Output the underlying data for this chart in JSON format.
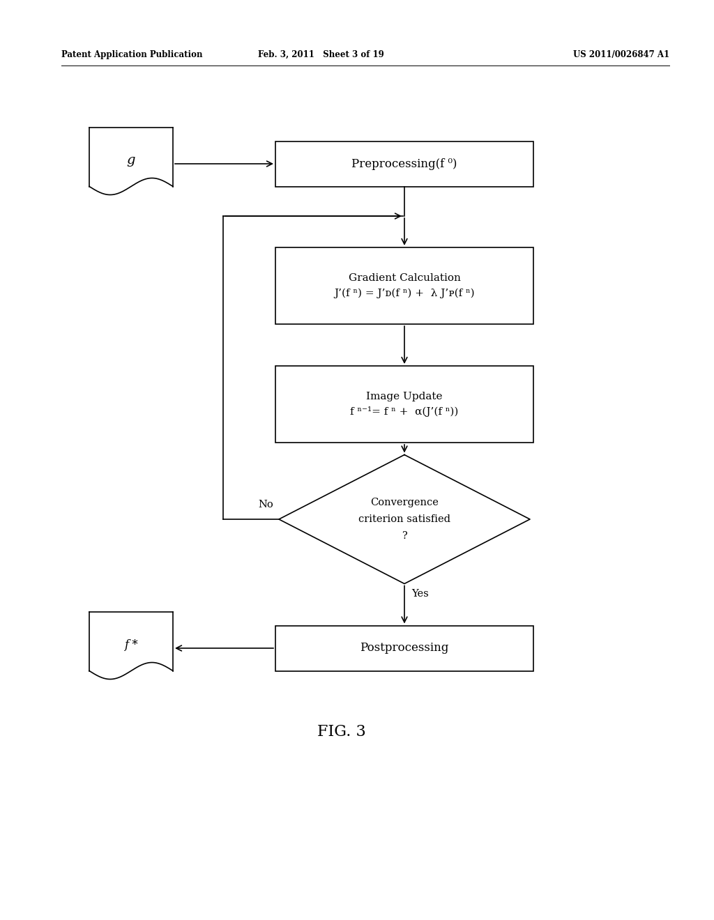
{
  "header_left": "Patent Application Publication",
  "header_center": "Feb. 3, 2011   Sheet 3 of 19",
  "header_right": "US 2011/0026847 A1",
  "fig_label": "FIG. 3",
  "preprocessing_label": "Preprocessing(f ⁰)",
  "gradient_line1": "Gradient Calculation",
  "gradient_line2": "J’(f ⁿ) = J’ᴅ(f ⁿ) +  λ J’ᴘ(f ⁿ)",
  "image_update_line1": "Image Update",
  "image_update_line2": "f ⁿ⁻¹= f ⁿ +  α(J’(f ⁿ))",
  "convergence_line1": "Convergence",
  "convergence_line2": "criterion satisfied",
  "convergence_line3": "?",
  "no_label": "No",
  "yes_label": "Yes",
  "postprocessing_label": "Postprocessing",
  "g_label": "g",
  "fstar_label": "f *",
  "bg_color": "#ffffff",
  "text_color": "#000000",
  "lw": 1.2,
  "header_lw": 0.7
}
